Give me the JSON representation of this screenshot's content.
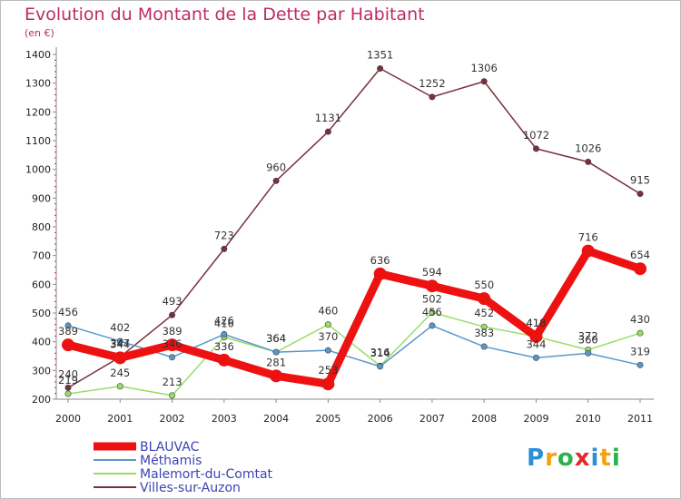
{
  "title": "Evolution du Montant de la Dette par Habitant",
  "subtitle": "(en €)",
  "logo": "Proxiti",
  "chart_data": {
    "type": "line",
    "title": "Evolution du Montant de la Dette par Habitant",
    "subtitle": "(en €)",
    "x": [
      "2000",
      "2001",
      "2002",
      "2003",
      "2004",
      "2005",
      "2006",
      "2007",
      "2008",
      "2009",
      "2010",
      "2011"
    ],
    "ylim": [
      200,
      1400
    ],
    "yticks": [
      200,
      300,
      400,
      500,
      600,
      700,
      800,
      900,
      1000,
      1100,
      1200,
      1300,
      1400
    ],
    "grid": false,
    "legend_position": "bottom-left",
    "series": [
      {
        "name": "BLAUVAC",
        "color": "#ee1111",
        "values": [
          389,
          344,
          389,
          336,
          281,
          253,
          636,
          594,
          550,
          418,
          716,
          654
        ]
      },
      {
        "name": "Méthamis",
        "color": "#5a97c9",
        "values": [
          456,
          402,
          346,
          426,
          364,
          370,
          314,
          456,
          383,
          344,
          360,
          319
        ]
      },
      {
        "name": "Malemort-du-Comtat",
        "color": "#99dd66",
        "values": [
          219,
          245,
          213,
          416,
          364,
          460,
          316,
          502,
          452,
          418,
          372,
          430
        ]
      },
      {
        "name": "Villes-sur-Auzon",
        "color": "#7a2f3d",
        "values": [
          240,
          347,
          493,
          723,
          960,
          1131,
          1351,
          1252,
          1306,
          1072,
          1026,
          915
        ]
      }
    ],
    "labels": [
      [
        "389",
        "344",
        "389",
        "336",
        "281",
        "253",
        "636",
        "594",
        "550",
        "418",
        "716",
        "654"
      ],
      [
        "456",
        "402",
        "346",
        "426",
        "364",
        "370",
        "314",
        "456",
        "383",
        "344",
        "360",
        "319"
      ],
      [
        "219",
        "245",
        "213",
        "416",
        "364",
        "460",
        "316",
        "502",
        "452",
        "418",
        "372",
        "430"
      ],
      [
        "240",
        "347",
        "493",
        "723",
        "960",
        "1131",
        "1351",
        "1252",
        "1306",
        "1072",
        "1026",
        "915"
      ]
    ]
  }
}
